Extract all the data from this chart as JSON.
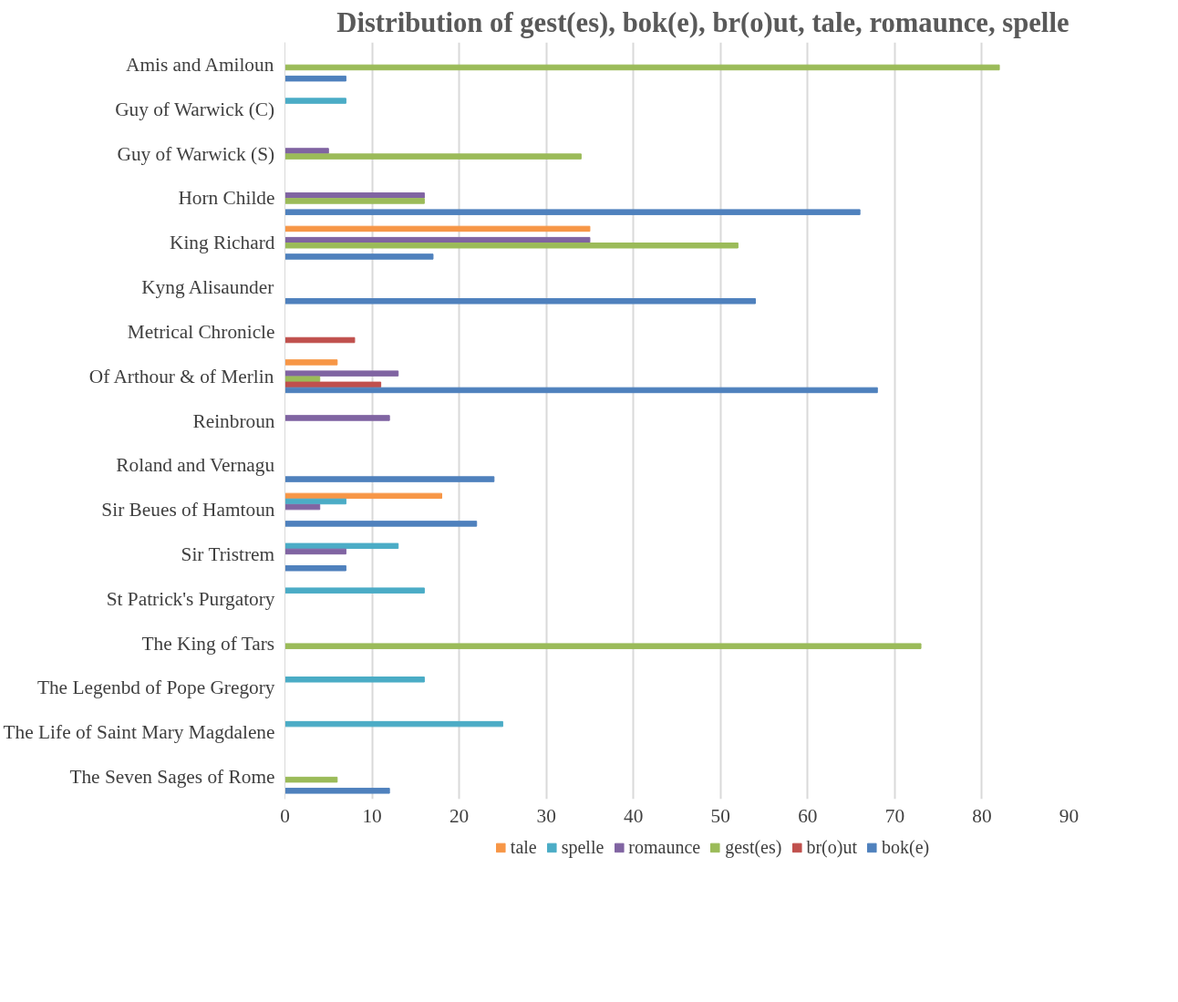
{
  "chart_data": {
    "type": "bar",
    "orientation": "horizontal",
    "title": "Distribution of gest(es), bok(e), br(o)ut, tale, romaunce, spelle",
    "categories": [
      "Amis and Amiloun",
      "Guy of Warwick (C)",
      "Guy of Warwick (S)",
      "Horn Childe",
      "King Richard",
      "Kyng Alisaunder",
      "Metrical Chronicle",
      "Of Arthour & of Merlin",
      "Reinbroun",
      "Roland and Vernagu",
      "Sir Beues of Hamtoun",
      "Sir Tristrem",
      "St Patrick's Purgatory",
      "The King of Tars",
      "The Legenbd of Pope Gregory",
      "The Life of Saint Mary Magdalene",
      "The Seven Sages of Rome"
    ],
    "series": [
      {
        "name": "tale",
        "color": "#f79646",
        "values": [
          null,
          null,
          null,
          null,
          35,
          null,
          null,
          6,
          null,
          null,
          18,
          null,
          null,
          null,
          null,
          null,
          null
        ]
      },
      {
        "name": "spelle",
        "color": "#4bacc6",
        "values": [
          null,
          7,
          null,
          null,
          null,
          null,
          null,
          null,
          null,
          null,
          7,
          13,
          16,
          null,
          16,
          25,
          null
        ]
      },
      {
        "name": "romaunce",
        "color": "#8064a2",
        "values": [
          null,
          null,
          5,
          16,
          35,
          null,
          null,
          13,
          12,
          null,
          4,
          7,
          null,
          null,
          null,
          null,
          null
        ]
      },
      {
        "name": "gest(es)",
        "color": "#9bbb59",
        "values": [
          82,
          null,
          34,
          16,
          52,
          null,
          null,
          4,
          null,
          null,
          null,
          null,
          null,
          73,
          null,
          null,
          6
        ]
      },
      {
        "name": "br(o)ut",
        "color": "#c0504d",
        "values": [
          null,
          null,
          null,
          null,
          null,
          null,
          8,
          11,
          null,
          null,
          null,
          null,
          null,
          null,
          null,
          null,
          null
        ]
      },
      {
        "name": "bok(e)",
        "color": "#4f81bd",
        "values": [
          7,
          null,
          null,
          66,
          17,
          54,
          null,
          68,
          null,
          24,
          22,
          7,
          null,
          null,
          null,
          null,
          12
        ]
      }
    ],
    "xlim": [
      0,
      90
    ],
    "xticks": [
      0,
      10,
      20,
      30,
      40,
      50,
      60,
      70,
      80,
      90
    ],
    "grid": "x",
    "legend": "bottom"
  }
}
